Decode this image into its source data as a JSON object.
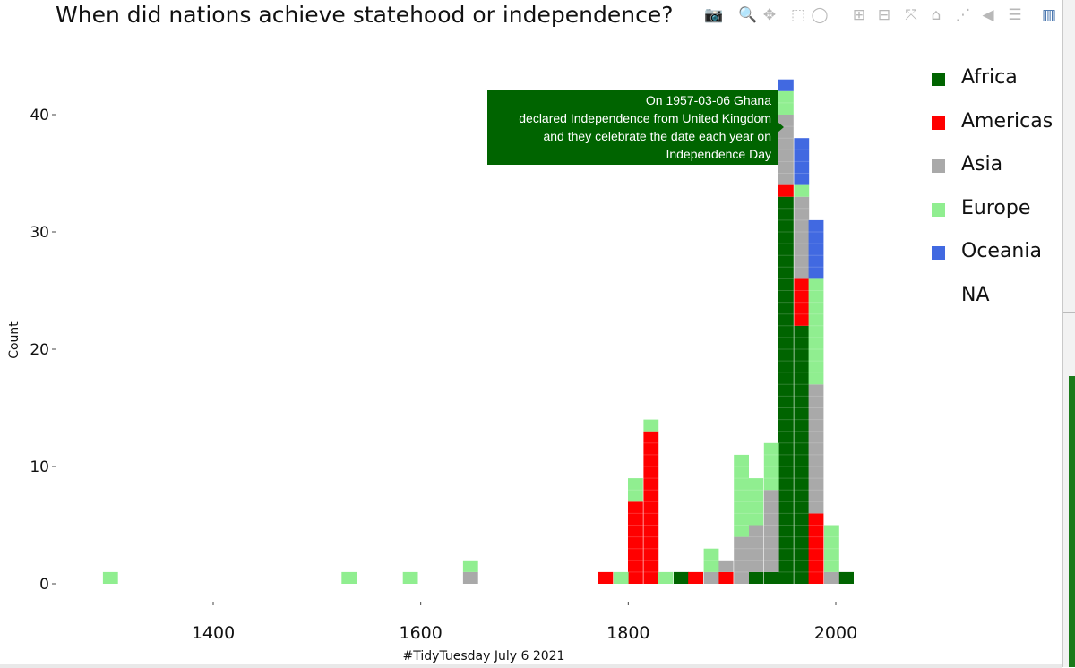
{
  "chart_data": {
    "type": "bar",
    "title": "When did nations achieve statehood or independence?",
    "xlabel": "#TidyTuesday July 6 2021",
    "ylabel": "Count",
    "barmode": "stack",
    "bin_width": 14.5,
    "xlim": [
      1260,
      2035
    ],
    "ylim": [
      0,
      44.5
    ],
    "x_ticks": [
      1400,
      1600,
      1800,
      2000
    ],
    "y_ticks": [
      0,
      10,
      20,
      30,
      40
    ],
    "legend_position": "top-right",
    "series": [
      {
        "name": "Africa",
        "color": "#006400",
        "points": [
          [
            1851,
            1
          ],
          [
            1923,
            1
          ],
          [
            1938,
            1
          ],
          [
            1952,
            33
          ],
          [
            1967,
            22
          ],
          [
            2010,
            1
          ]
        ]
      },
      {
        "name": "Americas",
        "color": "#ff0000",
        "points": [
          [
            1778,
            1
          ],
          [
            1807,
            7
          ],
          [
            1822,
            13
          ],
          [
            1865,
            1
          ],
          [
            1894,
            1
          ],
          [
            1952,
            1
          ],
          [
            1967,
            4
          ],
          [
            1981,
            6
          ]
        ]
      },
      {
        "name": "Asia",
        "color": "#a9a9a9",
        "points": [
          [
            1648,
            1
          ],
          [
            1880,
            1
          ],
          [
            1894,
            1
          ],
          [
            1909,
            4
          ],
          [
            1923,
            4
          ],
          [
            1938,
            7
          ],
          [
            1952,
            6
          ],
          [
            1967,
            7
          ],
          [
            1981,
            11
          ],
          [
            1996,
            1
          ]
        ]
      },
      {
        "name": "Europe",
        "color": "#90ee90",
        "points": [
          [
            1301,
            1
          ],
          [
            1531,
            1
          ],
          [
            1590,
            1
          ],
          [
            1648,
            1
          ],
          [
            1793,
            1
          ],
          [
            1807,
            2
          ],
          [
            1822,
            1
          ],
          [
            1836,
            1
          ],
          [
            1880,
            2
          ],
          [
            1909,
            7
          ],
          [
            1923,
            4
          ],
          [
            1938,
            4
          ],
          [
            1952,
            2
          ],
          [
            1967,
            1
          ],
          [
            1981,
            9
          ],
          [
            1996,
            4
          ]
        ]
      },
      {
        "name": "Oceania",
        "color": "#4169e1",
        "points": [
          [
            1952,
            1
          ],
          [
            1967,
            4
          ],
          [
            1981,
            5
          ]
        ]
      },
      {
        "name": "NA",
        "color": "#ffffff",
        "points": []
      }
    ],
    "annotation": {
      "lines": [
        "On 1957-03-06 Ghana",
        "declared Independence from United Kingdom",
        "and they celebrate the date each year on",
        "Independence Day"
      ],
      "color": "#006400"
    }
  },
  "modebar": [
    {
      "name": "camera-icon",
      "glyph": "📷"
    },
    {
      "name": "zoom-icon",
      "glyph": "🔍"
    },
    {
      "name": "pan-icon",
      "glyph": "✥"
    },
    {
      "name": "box-select-icon",
      "glyph": "⬚"
    },
    {
      "name": "lasso-select-icon",
      "glyph": "◯"
    },
    {
      "name": "zoom-in-icon",
      "glyph": "⊞"
    },
    {
      "name": "zoom-out-icon",
      "glyph": "⊟"
    },
    {
      "name": "autoscale-icon",
      "glyph": "⤧"
    },
    {
      "name": "reset-axes-icon",
      "glyph": "⌂"
    },
    {
      "name": "spike-lines-icon",
      "glyph": "⋰"
    },
    {
      "name": "hover-closest-icon",
      "glyph": "◀"
    },
    {
      "name": "hover-compare-icon",
      "glyph": "☰"
    },
    {
      "name": "plotly-logo-icon",
      "glyph": "▥"
    }
  ]
}
